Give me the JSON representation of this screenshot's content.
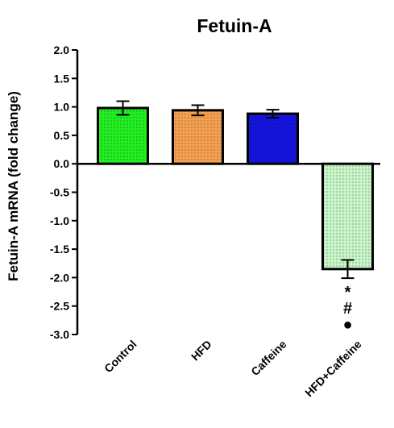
{
  "chart_data": {
    "type": "bar",
    "title": "Fetuin-A",
    "ylabel": "Fetuin-A mRNA (fold change)",
    "xlabel": "",
    "ylim": [
      -3.0,
      2.0
    ],
    "yticks": [
      "2.0",
      "1.5",
      "1.0",
      "0.5",
      "0.0",
      "-0.5",
      "-1.0",
      "-1.5",
      "-2.0",
      "-2.5",
      "-3.0"
    ],
    "categories": [
      "Control",
      "HFD",
      "Caffeine",
      "HFD+Caffeine"
    ],
    "values": [
      0.98,
      0.94,
      0.88,
      -1.85
    ],
    "errors": [
      0.12,
      0.09,
      0.07,
      0.16
    ],
    "colors": [
      "#22ee22",
      "#f5a050",
      "#1414e0",
      "#c8f5c8"
    ],
    "annotations": {
      "HFD+Caffeine": [
        "*",
        "#",
        "●"
      ]
    },
    "grid": false,
    "legend": "none"
  }
}
